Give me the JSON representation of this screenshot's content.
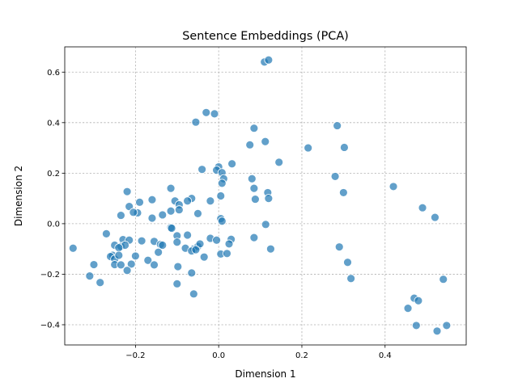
{
  "chart_data": {
    "type": "scatter",
    "title": "Sentence Embeddings (PCA)",
    "xlabel": "Dimension 1",
    "ylabel": "Dimension 2",
    "xlim": [
      -0.37,
      0.595
    ],
    "ylim": [
      -0.48,
      0.7
    ],
    "xticks": [
      -0.2,
      0.0,
      0.2,
      0.4
    ],
    "yticks": [
      -0.4,
      -0.2,
      0.0,
      0.2,
      0.4,
      0.6
    ],
    "xtick_labels": [
      "−0.2",
      "0.0",
      "0.2",
      "0.4"
    ],
    "ytick_labels": [
      "−0.4",
      "−0.2",
      "0.0",
      "0.2",
      "0.4",
      "0.6"
    ],
    "grid": true,
    "point_color": "#1f77b4",
    "point_opacity": 0.7,
    "points": [
      [
        0.11,
        0.64
      ],
      [
        0.12,
        0.648
      ],
      [
        -0.03,
        0.44
      ],
      [
        -0.01,
        0.435
      ],
      [
        -0.055,
        0.402
      ],
      [
        0.285,
        0.388
      ],
      [
        0.085,
        0.378
      ],
      [
        0.075,
        0.312
      ],
      [
        0.112,
        0.325
      ],
      [
        0.215,
        0.3
      ],
      [
        0.302,
        0.302
      ],
      [
        0.145,
        0.243
      ],
      [
        0.032,
        0.237
      ],
      [
        0.0,
        0.225
      ],
      [
        -0.04,
        0.215
      ],
      [
        -0.005,
        0.212
      ],
      [
        0.008,
        0.202
      ],
      [
        0.012,
        0.178
      ],
      [
        0.008,
        0.16
      ],
      [
        0.08,
        0.178
      ],
      [
        0.085,
        0.14
      ],
      [
        0.28,
        0.187
      ],
      [
        0.42,
        0.147
      ],
      [
        0.118,
        0.123
      ],
      [
        0.3,
        0.123
      ],
      [
        0.12,
        0.1
      ],
      [
        0.088,
        0.097
      ],
      [
        0.005,
        0.11
      ],
      [
        -0.22,
        0.127
      ],
      [
        -0.115,
        0.14
      ],
      [
        -0.065,
        0.1
      ],
      [
        -0.075,
        0.09
      ],
      [
        -0.02,
        0.09
      ],
      [
        -0.16,
        0.095
      ],
      [
        -0.19,
        0.085
      ],
      [
        -0.105,
        0.09
      ],
      [
        -0.095,
        0.075
      ],
      [
        -0.215,
        0.068
      ],
      [
        -0.095,
        0.055
      ],
      [
        -0.115,
        0.05
      ],
      [
        -0.195,
        0.043
      ],
      [
        -0.205,
        0.045
      ],
      [
        -0.135,
        0.035
      ],
      [
        -0.235,
        0.033
      ],
      [
        -0.05,
        0.04
      ],
      [
        -0.16,
        0.022
      ],
      [
        0.005,
        0.02
      ],
      [
        0.008,
        0.01
      ],
      [
        0.49,
        0.063
      ],
      [
        0.52,
        0.025
      ],
      [
        0.113,
        -0.003
      ],
      [
        -0.115,
        -0.015
      ],
      [
        -0.113,
        -0.018
      ],
      [
        -0.27,
        -0.04
      ],
      [
        -0.1,
        -0.048
      ],
      [
        -0.075,
        -0.045
      ],
      [
        0.03,
        -0.062
      ],
      [
        -0.02,
        -0.058
      ],
      [
        -0.005,
        -0.065
      ],
      [
        0.025,
        -0.08
      ],
      [
        0.085,
        -0.055
      ],
      [
        -0.35,
        -0.097
      ],
      [
        -0.23,
        -0.063
      ],
      [
        -0.215,
        -0.065
      ],
      [
        -0.185,
        -0.068
      ],
      [
        -0.155,
        -0.07
      ],
      [
        -0.14,
        -0.082
      ],
      [
        -0.135,
        -0.085
      ],
      [
        -0.1,
        -0.073
      ],
      [
        -0.08,
        -0.097
      ],
      [
        -0.06,
        -0.1
      ],
      [
        -0.05,
        -0.09
      ],
      [
        -0.045,
        -0.08
      ],
      [
        -0.25,
        -0.085
      ],
      [
        -0.235,
        -0.09
      ],
      [
        -0.225,
        -0.085
      ],
      [
        -0.24,
        -0.095
      ],
      [
        -0.255,
        -0.125
      ],
      [
        -0.26,
        -0.13
      ],
      [
        -0.25,
        -0.14
      ],
      [
        -0.24,
        -0.125
      ],
      [
        -0.2,
        -0.128
      ],
      [
        -0.17,
        -0.145
      ],
      [
        -0.145,
        -0.113
      ],
      [
        -0.065,
        -0.108
      ],
      [
        -0.055,
        -0.103
      ],
      [
        -0.035,
        -0.132
      ],
      [
        0.005,
        -0.12
      ],
      [
        0.02,
        -0.118
      ],
      [
        0.125,
        -0.1
      ],
      [
        0.29,
        -0.092
      ],
      [
        -0.3,
        -0.162
      ],
      [
        -0.25,
        -0.162
      ],
      [
        -0.235,
        -0.163
      ],
      [
        -0.21,
        -0.16
      ],
      [
        -0.155,
        -0.163
      ],
      [
        -0.098,
        -0.17
      ],
      [
        -0.22,
        -0.185
      ],
      [
        -0.065,
        -0.195
      ],
      [
        -0.31,
        -0.207
      ],
      [
        -0.285,
        -0.233
      ],
      [
        -0.1,
        -0.238
      ],
      [
        -0.06,
        -0.278
      ],
      [
        0.31,
        -0.153
      ],
      [
        0.318,
        -0.217
      ],
      [
        0.54,
        -0.22
      ],
      [
        0.47,
        -0.295
      ],
      [
        0.48,
        -0.305
      ],
      [
        0.455,
        -0.335
      ],
      [
        0.475,
        -0.403
      ],
      [
        0.525,
        -0.425
      ],
      [
        0.548,
        -0.403
      ]
    ]
  }
}
